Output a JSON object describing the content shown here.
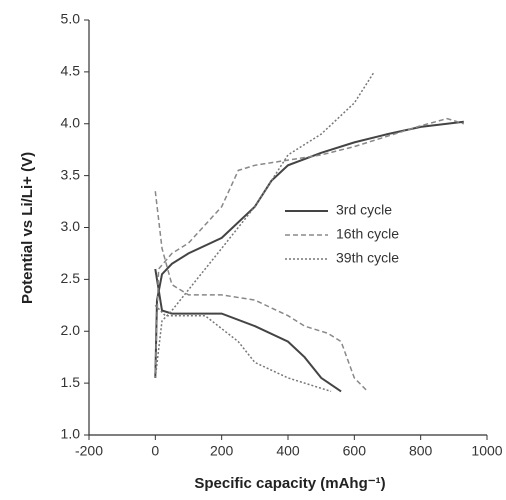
{
  "chart_data": {
    "type": "line",
    "xlabel": "Specific capacity (mAhg⁻¹)",
    "ylabel": "Potential vs Li/Li+ (V)",
    "xlim": [
      -200,
      1000
    ],
    "xticks": [
      -200,
      0,
      200,
      400,
      600,
      800,
      1000
    ],
    "ylim": [
      1.0,
      5.0
    ],
    "yticks": [
      {
        "value": 1.0,
        "label": "1.0"
      },
      {
        "value": 1.5,
        "label": "1.5"
      },
      {
        "value": 2.0,
        "label": "2.0"
      },
      {
        "value": 2.5,
        "label": "2.5"
      },
      {
        "value": 3.0,
        "label": "3.0"
      },
      {
        "value": 3.5,
        "label": "3.5"
      },
      {
        "value": 4.0,
        "label": "4.0"
      },
      {
        "value": 4.5,
        "label": "4.5"
      },
      {
        "value": 5.0,
        "label": "5.0"
      }
    ],
    "series": [
      {
        "name": "3rd cycle",
        "color": "#444444",
        "style": "solid",
        "x": [
          0,
          5,
          20,
          50,
          100,
          200,
          300,
          350,
          400,
          500,
          600,
          700,
          800,
          930,
          null,
          0,
          20,
          50,
          200,
          300,
          400,
          450,
          500,
          560
        ],
        "values": [
          1.55,
          2.3,
          2.55,
          2.65,
          2.75,
          2.9,
          3.2,
          3.45,
          3.6,
          3.72,
          3.82,
          3.9,
          3.97,
          4.02,
          null,
          2.6,
          2.2,
          2.17,
          2.17,
          2.05,
          1.9,
          1.75,
          1.55,
          1.42
        ]
      },
      {
        "name": "16th cycle",
        "color": "#888888",
        "style": "dashed",
        "x": [
          0,
          10,
          50,
          100,
          200,
          250,
          300,
          400,
          500,
          600,
          700,
          800,
          880,
          930,
          null,
          0,
          20,
          50,
          100,
          200,
          300,
          400,
          450,
          520,
          560,
          600,
          640
        ],
        "values": [
          1.6,
          2.6,
          2.75,
          2.85,
          3.2,
          3.55,
          3.6,
          3.65,
          3.7,
          3.78,
          3.88,
          3.98,
          4.05,
          4.0,
          null,
          3.35,
          2.8,
          2.45,
          2.35,
          2.35,
          2.3,
          2.15,
          2.05,
          1.98,
          1.9,
          1.55,
          1.42
        ]
      },
      {
        "name": "39th cycle",
        "color": "#777777",
        "style": "dotted",
        "x": [
          0,
          20,
          50,
          100,
          200,
          300,
          400,
          500,
          600,
          660,
          null,
          0,
          30,
          150,
          250,
          300,
          400,
          530
        ],
        "values": [
          1.55,
          2.1,
          2.2,
          2.4,
          2.8,
          3.2,
          3.7,
          3.9,
          4.2,
          4.5,
          null,
          2.25,
          2.15,
          2.15,
          1.9,
          1.7,
          1.55,
          1.42
        ]
      }
    ]
  }
}
